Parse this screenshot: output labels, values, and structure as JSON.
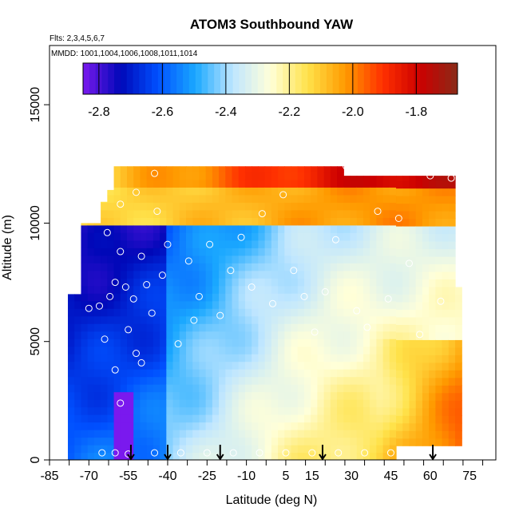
{
  "chart_data": {
    "type": "heatmap",
    "title": "ATOM3 Southbound YAW",
    "subtitle_flights": "Flts: 2,3,4,5,6,7",
    "subtitle_dates": "MMDD: 1001,1004,1006,1008,1011,1014",
    "xlabel": "Latitude (deg N)",
    "ylabel": "Altitude (m)",
    "xlim": [
      -85,
      85
    ],
    "ylim": [
      0,
      17500
    ],
    "x_ticks": [
      -85,
      -70,
      -55,
      -40,
      -25,
      -10,
      5,
      15,
      30,
      45,
      60,
      75
    ],
    "x_tick_labels": [
      "-85",
      "-70",
      "-55",
      "-40",
      "-25",
      "-10",
      "5",
      "15",
      "30",
      "45",
      "60",
      "75"
    ],
    "y_ticks": [
      0,
      5000,
      10000,
      15000
    ],
    "y_tick_labels": [
      "0",
      "5000",
      "10000",
      "15000"
    ],
    "colorbar": {
      "min": -2.85,
      "max": -1.67,
      "ticks": [
        -2.8,
        -2.6,
        -2.4,
        -2.2,
        -2.0,
        -1.8
      ],
      "tick_labels": [
        "-2.8",
        "-2.6",
        "-2.4",
        "-2.2",
        "-2.0",
        "-1.8"
      ],
      "colors": [
        "#7a19ee",
        "#0008b8",
        "#0050ff",
        "#1aa8ff",
        "#bfe6ff",
        "#ffffd9",
        "#ffe24a",
        "#ff9a00",
        "#ff3000",
        "#cc0000",
        "#8a2a18"
      ]
    },
    "profile_markers_lat": [
      -54,
      -40,
      -20,
      19,
      61
    ],
    "observations": [
      [
        -70,
        6400
      ],
      [
        -66,
        6500
      ],
      [
        -64,
        5100
      ],
      [
        -62,
        6900
      ],
      [
        -60,
        7500
      ],
      [
        -58,
        8800
      ],
      [
        -56,
        7300
      ],
      [
        -55,
        5500
      ],
      [
        -53,
        6800
      ],
      [
        -52,
        4500
      ],
      [
        -50,
        8600
      ],
      [
        -48,
        7400
      ],
      [
        -46,
        6200
      ],
      [
        -44,
        10500
      ],
      [
        -40,
        9100
      ],
      [
        -36,
        4900
      ],
      [
        -32,
        8400
      ],
      [
        -28,
        6900
      ],
      [
        -24,
        9100
      ],
      [
        -20,
        6100
      ],
      [
        -16,
        8000
      ],
      [
        -12,
        9400
      ],
      [
        -8,
        7300
      ],
      [
        -4,
        10400
      ],
      [
        0,
        6600
      ],
      [
        4,
        11200
      ],
      [
        8,
        8000
      ],
      [
        12,
        6900
      ],
      [
        16,
        5400
      ],
      [
        20,
        7100
      ],
      [
        24,
        9300
      ],
      [
        28,
        12400
      ],
      [
        32,
        6300
      ],
      [
        36,
        5600
      ],
      [
        40,
        10500
      ],
      [
        44,
        6800
      ],
      [
        48,
        10200
      ],
      [
        52,
        8300
      ],
      [
        56,
        5300
      ],
      [
        60,
        12000
      ],
      [
        64,
        6700
      ],
      [
        68,
        11900
      ],
      [
        -71,
        10200
      ],
      [
        -68,
        11300
      ],
      [
        -63,
        9600
      ],
      [
        -58,
        10800
      ],
      [
        -52,
        11300
      ],
      [
        -45,
        12100
      ],
      [
        -65,
        300
      ],
      [
        -60,
        300
      ],
      [
        -55,
        250
      ],
      [
        -45,
        300
      ],
      [
        -35,
        300
      ],
      [
        -25,
        300
      ],
      [
        -15,
        300
      ],
      [
        -5,
        300
      ],
      [
        5,
        300
      ],
      [
        15,
        300
      ],
      [
        25,
        300
      ],
      [
        35,
        300
      ],
      [
        45,
        300
      ],
      [
        -60,
        3800
      ],
      [
        -58,
        2400
      ],
      [
        -50,
        4100
      ],
      [
        -42,
        7800
      ],
      [
        -30,
        5900
      ]
    ]
  }
}
